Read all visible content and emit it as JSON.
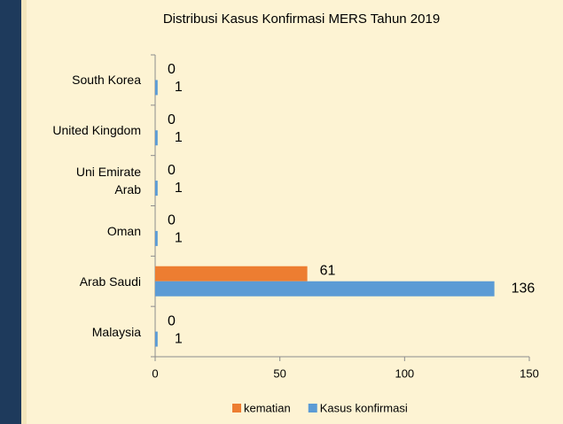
{
  "chart_data": {
    "type": "bar",
    "orientation": "horizontal",
    "title": "Distribusi Kasus Konfirmasi MERS Tahun 2019",
    "categories": [
      "South Korea",
      "United Kingdom",
      "Uni Emirate\nArab",
      "Oman",
      "Arab Saudi",
      "Malaysia"
    ],
    "series": [
      {
        "name": "kematian",
        "color": "#ed7d31",
        "values": [
          0,
          0,
          0,
          0,
          61,
          0
        ]
      },
      {
        "name": "Kasus konfirmasi",
        "color": "#5b9bd5",
        "values": [
          1,
          1,
          1,
          1,
          136,
          1
        ]
      }
    ],
    "xlim": [
      0,
      150
    ],
    "xticks": [
      0,
      50,
      100,
      150
    ],
    "grid": false,
    "legend": "bottom"
  }
}
